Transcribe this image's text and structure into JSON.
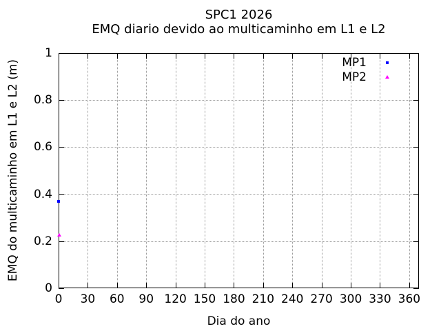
{
  "chart_data": {
    "type": "scatter",
    "title": "SPC1 2026",
    "subtitle": "EMQ diario devido ao multicaminho em L1 e L2",
    "xlabel": "Dia do ano",
    "ylabel": "EMQ do multicaminho em L1 e L2 (m)",
    "xlim": [
      0,
      370
    ],
    "ylim": [
      0,
      1
    ],
    "xticks": {
      "values": [
        0,
        30,
        60,
        90,
        120,
        150,
        180,
        210,
        240,
        270,
        300,
        330,
        360
      ],
      "labels": [
        "0",
        "30",
        "60",
        "90",
        "120",
        "150",
        "180",
        "210",
        "240",
        "270",
        "300",
        "330",
        "360"
      ]
    },
    "yticks": {
      "values": [
        0,
        0.2,
        0.4,
        0.6,
        0.8,
        1
      ],
      "labels": [
        "0",
        "0.2",
        "0.4",
        "0.6",
        "0.8",
        "1"
      ]
    },
    "grid": true,
    "grid_color": "#999999",
    "border_color": "#000000",
    "legend_position": "top-right-inside",
    "series": [
      {
        "name": "MP1",
        "color": "#0000ff",
        "marker": "square",
        "points": [
          {
            "x": 1,
            "y": 0.37
          }
        ]
      },
      {
        "name": "MP2",
        "color": "#ff00ff",
        "marker": "triangle",
        "points": [
          {
            "x": 1,
            "y": 0.23
          }
        ]
      }
    ]
  }
}
